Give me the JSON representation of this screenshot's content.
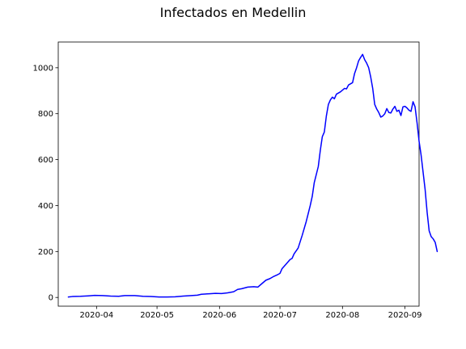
{
  "chart_data": {
    "type": "line",
    "title": "Infectados en Medellin",
    "xlabel": "",
    "ylabel": "",
    "grid": false,
    "line_color": "#0000ff",
    "xlim": [
      "2020-03-13",
      "2020-09-08"
    ],
    "ylim": [
      -38,
      1112
    ],
    "x_tick_labels": [
      "2020-04",
      "2020-05",
      "2020-06",
      "2020-07",
      "2020-08",
      "2020-09"
    ],
    "x_tick_dates": [
      "2020-04-01",
      "2020-05-01",
      "2020-06-01",
      "2020-07-01",
      "2020-08-01",
      "2020-09-01"
    ],
    "y_ticks": [
      0,
      200,
      400,
      600,
      800,
      1000
    ],
    "series": [
      {
        "points": [
          [
            "2020-03-18",
            2
          ],
          [
            "2020-03-20",
            4
          ],
          [
            "2020-03-24",
            5
          ],
          [
            "2020-03-28",
            7
          ],
          [
            "2020-03-31",
            9
          ],
          [
            "2020-04-04",
            8
          ],
          [
            "2020-04-08",
            6
          ],
          [
            "2020-04-12",
            5
          ],
          [
            "2020-04-15",
            8
          ],
          [
            "2020-04-20",
            8
          ],
          [
            "2020-04-24",
            5
          ],
          [
            "2020-04-28",
            4
          ],
          [
            "2020-05-02",
            2
          ],
          [
            "2020-05-06",
            2
          ],
          [
            "2020-05-10",
            3
          ],
          [
            "2020-05-14",
            6
          ],
          [
            "2020-05-18",
            8
          ],
          [
            "2020-05-21",
            10
          ],
          [
            "2020-05-23",
            14
          ],
          [
            "2020-05-27",
            16
          ],
          [
            "2020-05-30",
            18
          ],
          [
            "2020-06-02",
            17
          ],
          [
            "2020-06-05",
            20
          ],
          [
            "2020-06-08",
            25
          ],
          [
            "2020-06-10",
            35
          ],
          [
            "2020-06-12",
            38
          ],
          [
            "2020-06-15",
            45
          ],
          [
            "2020-06-18",
            47
          ],
          [
            "2020-06-20",
            45
          ],
          [
            "2020-06-22",
            60
          ],
          [
            "2020-06-24",
            75
          ],
          [
            "2020-06-26",
            82
          ],
          [
            "2020-06-28",
            92
          ],
          [
            "2020-06-30",
            100
          ],
          [
            "2020-07-01",
            105
          ],
          [
            "2020-07-02",
            125
          ],
          [
            "2020-07-04",
            145
          ],
          [
            "2020-07-06",
            165
          ],
          [
            "2020-07-07",
            170
          ],
          [
            "2020-07-08",
            190
          ],
          [
            "2020-07-10",
            215
          ],
          [
            "2020-07-12",
            270
          ],
          [
            "2020-07-14",
            330
          ],
          [
            "2020-07-16",
            400
          ],
          [
            "2020-07-17",
            440
          ],
          [
            "2020-07-18",
            500
          ],
          [
            "2020-07-20",
            570
          ],
          [
            "2020-07-21",
            640
          ],
          [
            "2020-07-22",
            700
          ],
          [
            "2020-07-23",
            720
          ],
          [
            "2020-07-24",
            790
          ],
          [
            "2020-07-25",
            840
          ],
          [
            "2020-07-26",
            860
          ],
          [
            "2020-07-27",
            872
          ],
          [
            "2020-07-28",
            865
          ],
          [
            "2020-07-29",
            885
          ],
          [
            "2020-07-31",
            895
          ],
          [
            "2020-08-02",
            910
          ],
          [
            "2020-08-03",
            908
          ],
          [
            "2020-08-04",
            925
          ],
          [
            "2020-08-06",
            935
          ],
          [
            "2020-08-07",
            975
          ],
          [
            "2020-08-08",
            1000
          ],
          [
            "2020-08-09",
            1030
          ],
          [
            "2020-08-10",
            1045
          ],
          [
            "2020-08-11",
            1058
          ],
          [
            "2020-08-12",
            1035
          ],
          [
            "2020-08-13",
            1020
          ],
          [
            "2020-08-14",
            1000
          ],
          [
            "2020-08-15",
            960
          ],
          [
            "2020-08-16",
            910
          ],
          [
            "2020-08-17",
            840
          ],
          [
            "2020-08-18",
            820
          ],
          [
            "2020-08-19",
            805
          ],
          [
            "2020-08-20",
            785
          ],
          [
            "2020-08-21",
            790
          ],
          [
            "2020-08-22",
            800
          ],
          [
            "2020-08-23",
            822
          ],
          [
            "2020-08-24",
            805
          ],
          [
            "2020-08-25",
            803
          ],
          [
            "2020-08-26",
            820
          ],
          [
            "2020-08-27",
            832
          ],
          [
            "2020-08-28",
            810
          ],
          [
            "2020-08-29",
            815
          ],
          [
            "2020-08-30",
            792
          ],
          [
            "2020-08-31",
            830
          ],
          [
            "2020-09-01",
            832
          ],
          [
            "2020-09-02",
            825
          ],
          [
            "2020-09-03",
            815
          ],
          [
            "2020-09-04",
            810
          ],
          [
            "2020-09-05",
            852
          ],
          [
            "2020-09-06",
            830
          ],
          [
            "2020-09-07",
            760
          ],
          [
            "2020-09-08",
            680
          ],
          [
            "2020-09-09",
            620
          ],
          [
            "2020-09-10",
            545
          ],
          [
            "2020-09-11",
            470
          ],
          [
            "2020-09-12",
            370
          ],
          [
            "2020-09-13",
            290
          ],
          [
            "2020-09-14",
            265
          ],
          [
            "2020-09-15",
            255
          ],
          [
            "2020-09-16",
            240
          ],
          [
            "2020-09-17",
            200
          ]
        ]
      }
    ]
  }
}
